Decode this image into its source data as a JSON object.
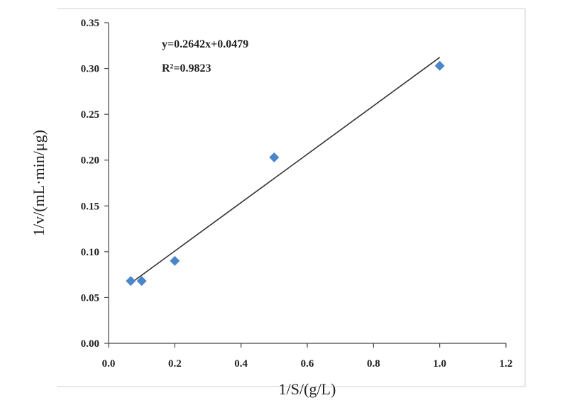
{
  "chart_data": {
    "type": "scatter",
    "xlabel": "1/S/(g/L)",
    "ylabel": "1/v/(mL·min/μg)",
    "xlim": [
      0.0,
      1.2
    ],
    "ylim": [
      0.0,
      0.35
    ],
    "x_ticks": [
      "0.0",
      "0.2",
      "0.4",
      "0.6",
      "0.8",
      "1.0",
      "1.2"
    ],
    "y_ticks": [
      "0.00",
      "0.05",
      "0.10",
      "0.15",
      "0.20",
      "0.25",
      "0.30",
      "0.35"
    ],
    "series": [
      {
        "marker": "diamond",
        "color": "#4a86c8",
        "points": [
          {
            "x": 0.067,
            "y": 0.068
          },
          {
            "x": 0.1,
            "y": 0.068
          },
          {
            "x": 0.2,
            "y": 0.09
          },
          {
            "x": 0.5,
            "y": 0.203
          },
          {
            "x": 1.0,
            "y": 0.303
          }
        ]
      }
    ],
    "trendline": {
      "slope": 0.2642,
      "intercept": 0.0479,
      "x_range": [
        0.067,
        1.0
      ],
      "color": "#333333",
      "equation": "y=0.2642x+0.0479",
      "r_squared": "R²=0.9823"
    },
    "grid": false,
    "legend": "none"
  }
}
